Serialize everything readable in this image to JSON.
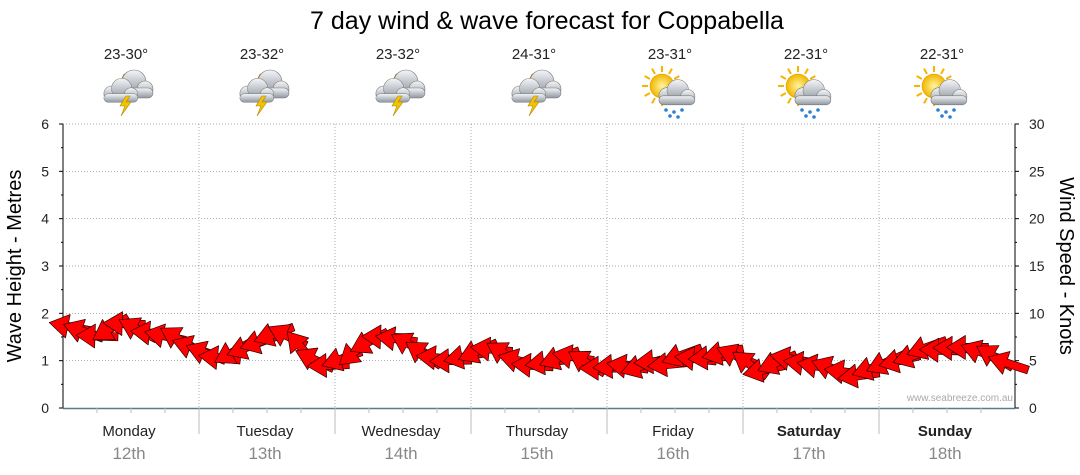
{
  "chart_data": {
    "type": "line",
    "title": "7 day wind & wave forecast for Coppabella",
    "ylabel": "Wave Height - Metres",
    "y2label": "Wind Speed - Knots",
    "ylim": [
      0,
      6
    ],
    "y2lim": [
      0,
      30
    ],
    "yticks": [
      "0",
      "1",
      "2",
      "3",
      "4",
      "5",
      "6"
    ],
    "y2ticks": [
      "0",
      "5",
      "10",
      "15",
      "20",
      "25",
      "30"
    ],
    "watermark": "www.seabreeze.com.au",
    "days": [
      {
        "name": "Monday",
        "date": "12th",
        "temp": "23-30°",
        "icon": "thunderstorm-icon",
        "bold": false
      },
      {
        "name": "Tuesday",
        "date": "13th",
        "temp": "23-32°",
        "icon": "thunderstorm-icon",
        "bold": false
      },
      {
        "name": "Wednesday",
        "date": "14th",
        "temp": "23-32°",
        "icon": "thunderstorm-icon",
        "bold": false
      },
      {
        "name": "Thursday",
        "date": "15th",
        "temp": "24-31°",
        "icon": "thunderstorm-icon",
        "bold": false
      },
      {
        "name": "Friday",
        "date": "16th",
        "temp": "23-31°",
        "icon": "sun-rain-icon",
        "bold": false
      },
      {
        "name": "Saturday",
        "date": "17th",
        "temp": "22-31°",
        "icon": "sun-rain-icon",
        "bold": true
      },
      {
        "name": "Sunday",
        "date": "18th",
        "temp": "22-31°",
        "icon": "sun-rain-icon",
        "bold": true
      }
    ],
    "series": [
      {
        "name": "Wind speed (knots)",
        "color": "#ff0000",
        "values": [
          8.6,
          8.1,
          7.6,
          8.4,
          8.9,
          8.3,
          7.9,
          7.6,
          7.3,
          6.4,
          5.8,
          5.3,
          5.9,
          6.4,
          7.0,
          7.8,
          7.6,
          6.4,
          5.1,
          4.5,
          5.2,
          6.0,
          7.0,
          7.5,
          7.3,
          6.7,
          5.7,
          5.3,
          5.0,
          5.4,
          6.0,
          6.2,
          5.7,
          5.0,
          4.5,
          4.8,
          5.3,
          5.4,
          4.8,
          4.2,
          4.4,
          4.4,
          4.4,
          4.9,
          4.6,
          5.6,
          5.2,
          5.3,
          5.8,
          5.5,
          4.6,
          4.0,
          4.8,
          5.2,
          4.7,
          4.4,
          4.2,
          3.8,
          3.4,
          4.2,
          4.8,
          5.0,
          5.5,
          6.4,
          6.1,
          6.3,
          6.4,
          5.9,
          5.4,
          4.7
        ]
      }
    ]
  }
}
